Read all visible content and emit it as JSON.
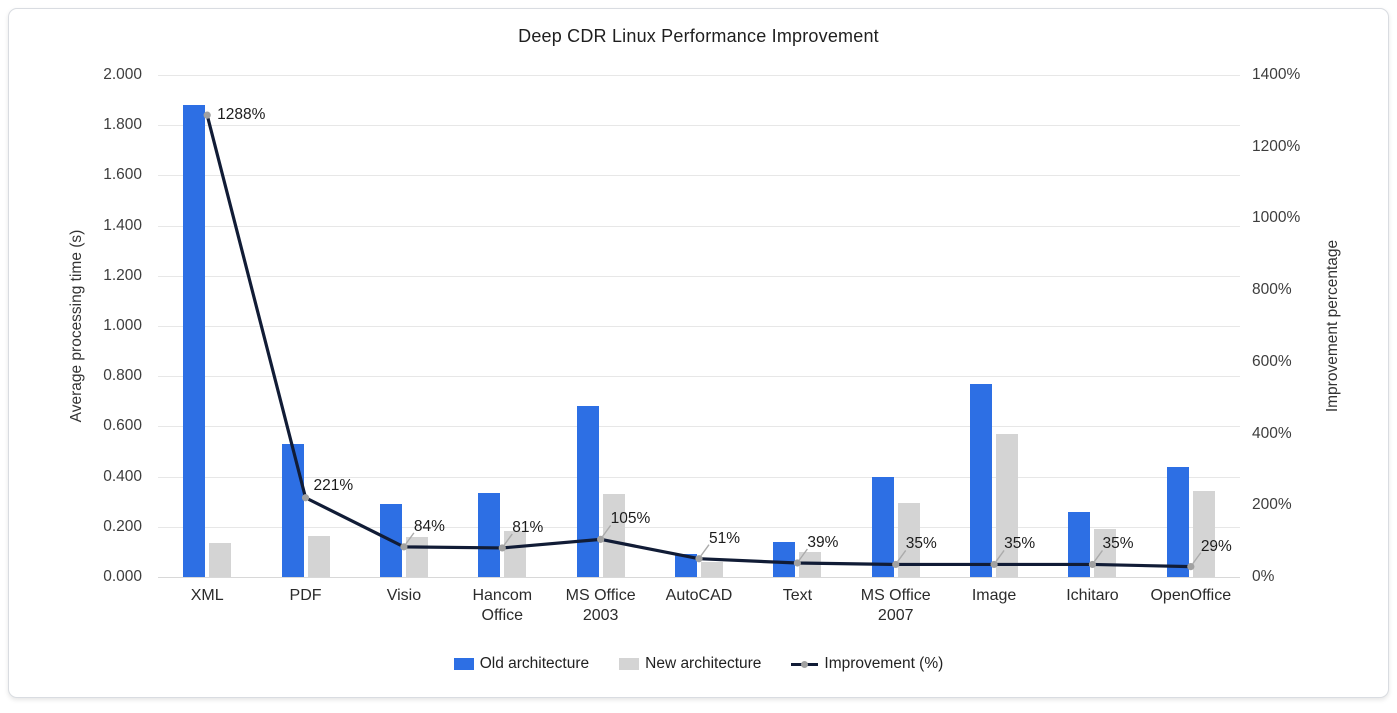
{
  "chart_data": {
    "type": "combo-bar-line",
    "title": "Deep CDR Linux Performance Improvement",
    "categories": [
      "XML",
      "PDF",
      "Visio",
      "Hancom Office",
      "MS Office 2003",
      "AutoCAD",
      "Text",
      "MS Office 2007",
      "Image",
      "Ichitaro",
      "OpenOffice"
    ],
    "series": [
      {
        "name": "Old architecture",
        "type": "bar",
        "axis": "left",
        "color": "#2d6fe4",
        "values": [
          1.88,
          0.53,
          0.29,
          0.335,
          0.68,
          0.09,
          0.14,
          0.4,
          0.77,
          0.26,
          0.44
        ]
      },
      {
        "name": "New architecture",
        "type": "bar",
        "axis": "left",
        "color": "#d4d4d4",
        "values": [
          0.136,
          0.164,
          0.158,
          0.185,
          0.332,
          0.06,
          0.101,
          0.296,
          0.57,
          0.193,
          0.341
        ]
      },
      {
        "name": "Improvement (%)",
        "type": "line",
        "axis": "right",
        "color": "#111c36",
        "marker_color": "#a1a1a1",
        "values": [
          1288,
          221,
          84,
          81,
          105,
          51,
          39,
          35,
          35,
          35,
          29
        ],
        "labels": [
          "1288%",
          "221%",
          "84%",
          "81%",
          "105%",
          "51%",
          "39%",
          "35%",
          "35%",
          "35%",
          "29%"
        ]
      }
    ],
    "left_axis": {
      "title": "Average processing time (s)",
      "min": 0,
      "max": 2,
      "ticks": [
        "0.000",
        "0.200",
        "0.400",
        "0.600",
        "0.800",
        "1.000",
        "1.200",
        "1.400",
        "1.600",
        "1.800",
        "2.000"
      ]
    },
    "right_axis": {
      "title": "Improvement percentage",
      "min": 0,
      "max": 1400,
      "ticks": [
        "0%",
        "200%",
        "400%",
        "600%",
        "800%",
        "1000%",
        "1200%",
        "1400%"
      ]
    },
    "grid": true,
    "legend_position": "bottom"
  }
}
